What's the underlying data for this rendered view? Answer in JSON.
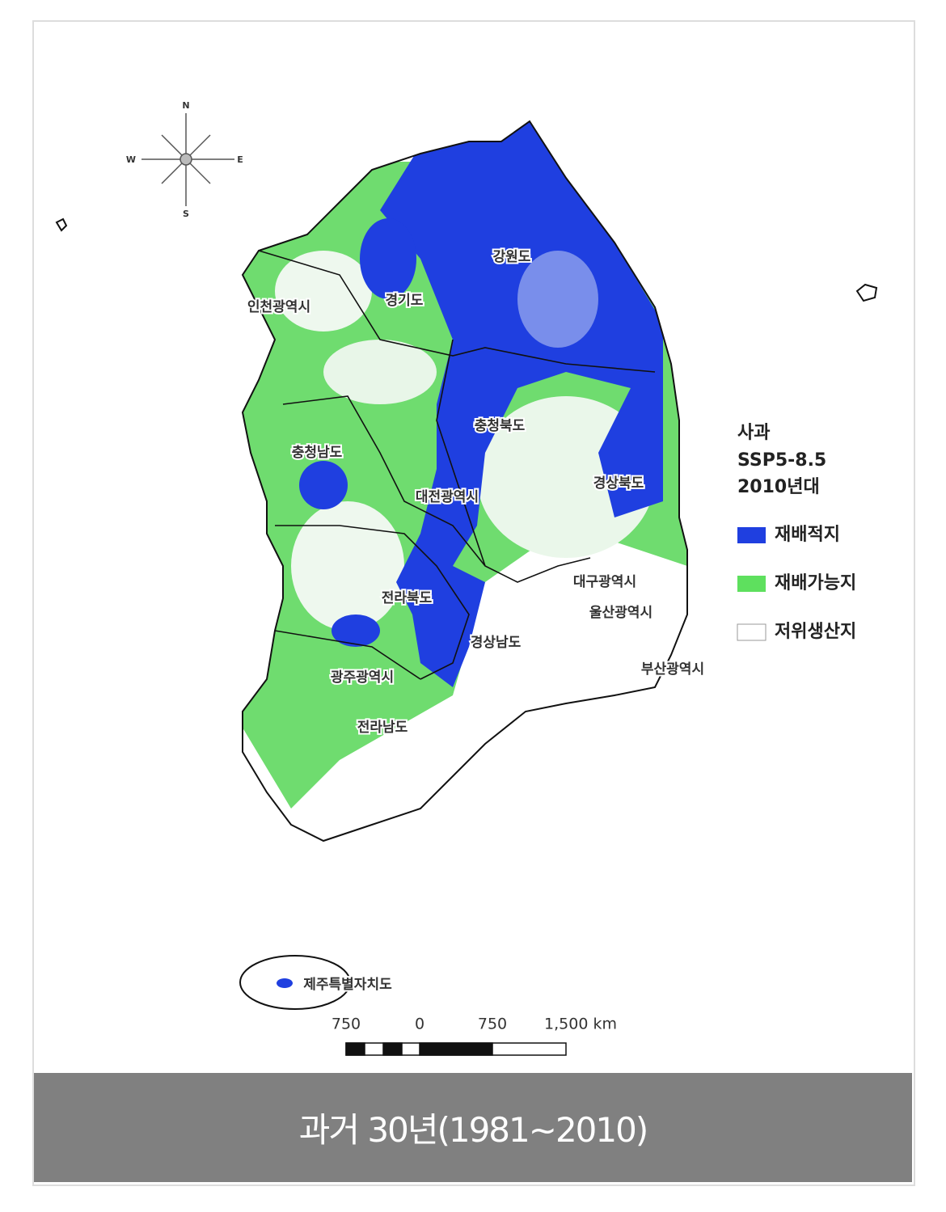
{
  "compass": {
    "n": "N",
    "s": "S",
    "e": "E",
    "w": "W"
  },
  "regions": [
    "강원도",
    "경기도",
    "인천광역시",
    "충청북도",
    "충청남도",
    "대전광역시",
    "경상북도",
    "전라북도",
    "대구광역시",
    "울산광역시",
    "경상남도",
    "부산광역시",
    "광주광역시",
    "전라남도",
    "제주특별자치도"
  ],
  "legend": {
    "title": [
      "사과",
      "SSP5-8.5",
      "2010년대"
    ],
    "items": [
      "재배적지",
      "재배가능지",
      "저위생산지"
    ]
  },
  "scale": {
    "labels": [
      "750",
      "0",
      "750",
      "1,500 km"
    ]
  },
  "caption": "과거 30년(1981~2010)"
}
